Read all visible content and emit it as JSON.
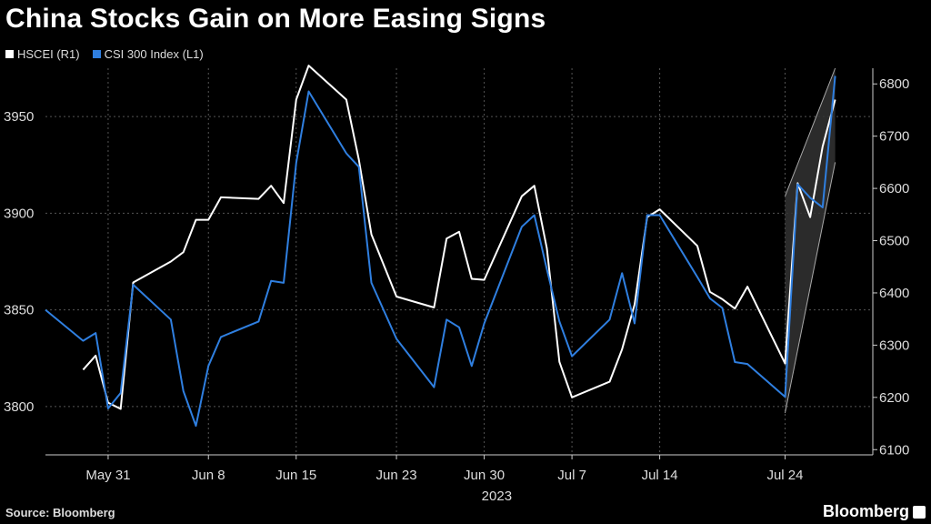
{
  "title": "China Stocks Gain on More Easing Signs",
  "legend": [
    {
      "label": "HSCEI (R1)",
      "color": "#ffffff"
    },
    {
      "label": "CSI 300 Index (L1)",
      "color": "#2f7fe0"
    }
  ],
  "footer": {
    "source": "Source: Bloomberg",
    "brand": "Bloomberg"
  },
  "chart_data": {
    "type": "line",
    "x_tick_labels": [
      "May 31",
      "Jun 8",
      "Jun 15",
      "Jun 23",
      "Jun 30",
      "Jul 7",
      "Jul 14",
      "Jul 24"
    ],
    "x_sub_label": "2023",
    "left_axis": {
      "ticks": [
        3800,
        3850,
        3900,
        3950
      ],
      "range": [
        3775,
        3975
      ]
    },
    "right_axis": {
      "ticks": [
        6100,
        6200,
        6300,
        6400,
        6500,
        6600,
        6700,
        6800
      ],
      "range": [
        6090,
        6830
      ]
    },
    "grid": true,
    "series": [
      {
        "name": "HSCEI (R1)",
        "axis": "right",
        "color": "#ffffff",
        "x": [
          "2023-05-29",
          "2023-05-30",
          "2023-05-31",
          "2023-06-01",
          "2023-06-02",
          "2023-06-05",
          "2023-06-06",
          "2023-06-07",
          "2023-06-08",
          "2023-06-09",
          "2023-06-12",
          "2023-06-13",
          "2023-06-14",
          "2023-06-15",
          "2023-06-16",
          "2023-06-19",
          "2023-06-20",
          "2023-06-21",
          "2023-06-23",
          "2023-06-26",
          "2023-06-27",
          "2023-06-28",
          "2023-06-29",
          "2023-06-30",
          "2023-07-03",
          "2023-07-04",
          "2023-07-05",
          "2023-07-06",
          "2023-07-07",
          "2023-07-10",
          "2023-07-11",
          "2023-07-12",
          "2023-07-13",
          "2023-07-14",
          "2023-07-17",
          "2023-07-18",
          "2023-07-19",
          "2023-07-20",
          "2023-07-21",
          "2023-07-24",
          "2023-07-25",
          "2023-07-26",
          "2023-07-27",
          "2023-07-28"
        ],
        "values": [
          6253,
          6280,
          6190,
          6178,
          6420,
          6460,
          6478,
          6540,
          6540,
          6583,
          6580,
          6605,
          6572,
          6770,
          6835,
          6770,
          6655,
          6512,
          6393,
          6372,
          6504,
          6517,
          6427,
          6425,
          6585,
          6605,
          6485,
          6268,
          6200,
          6230,
          6292,
          6378,
          6545,
          6560,
          6490,
          6402,
          6388,
          6370,
          6412,
          6265,
          6610,
          6545,
          6680,
          6770
        ]
      },
      {
        "name": "CSI 300 Index (L1)",
        "axis": "left",
        "color": "#2f7fe0",
        "x": [
          "2023-05-26",
          "2023-05-29",
          "2023-05-30",
          "2023-05-31",
          "2023-06-01",
          "2023-06-02",
          "2023-06-05",
          "2023-06-06",
          "2023-06-07",
          "2023-06-08",
          "2023-06-09",
          "2023-06-12",
          "2023-06-13",
          "2023-06-14",
          "2023-06-15",
          "2023-06-16",
          "2023-06-19",
          "2023-06-20",
          "2023-06-21",
          "2023-06-23",
          "2023-06-26",
          "2023-06-27",
          "2023-06-28",
          "2023-06-29",
          "2023-06-30",
          "2023-07-03",
          "2023-07-04",
          "2023-07-05",
          "2023-07-06",
          "2023-07-07",
          "2023-07-10",
          "2023-07-11",
          "2023-07-12",
          "2023-07-13",
          "2023-07-14",
          "2023-07-17",
          "2023-07-18",
          "2023-07-19",
          "2023-07-20",
          "2023-07-21",
          "2023-07-24",
          "2023-07-25",
          "2023-07-26",
          "2023-07-27",
          "2023-07-28"
        ],
        "values": [
          3850,
          3834,
          3838,
          3799,
          3807,
          3863,
          3845,
          3808,
          3790,
          3821,
          3836,
          3844,
          3865,
          3864,
          3926,
          3963,
          3931,
          3924,
          3864,
          3835,
          3810,
          3845,
          3841,
          3821,
          3843,
          3893,
          3899,
          3871,
          3844,
          3826,
          3845,
          3869,
          3843,
          3899,
          3899,
          3867,
          3856,
          3851,
          3823,
          3822,
          3805,
          3915,
          3908,
          3903,
          3971
        ]
      }
    ],
    "trend_channel": {
      "x": [
        "2023-07-24",
        "2023-07-28"
      ],
      "upper": [
        6585,
        6880
      ],
      "lower": [
        6170,
        6650
      ],
      "axis": "right"
    }
  }
}
